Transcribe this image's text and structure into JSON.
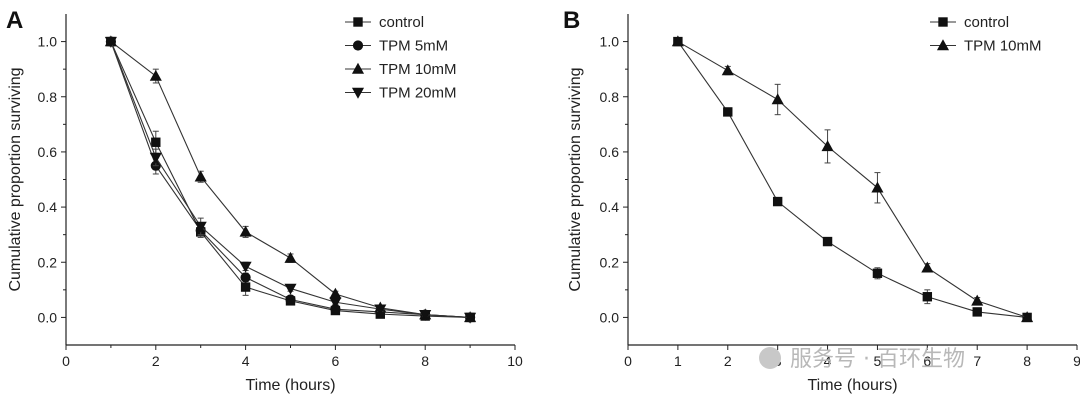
{
  "chart_data": [
    {
      "panel": "A",
      "type": "line",
      "xlabel": "Time (hours)",
      "ylabel": "Cumulative proportion surviving",
      "xlim": [
        0,
        10
      ],
      "ylim": [
        -0.1,
        1.1
      ],
      "xticks": [
        0,
        2,
        4,
        6,
        8,
        10
      ],
      "yticks": [
        0.0,
        0.2,
        0.4,
        0.6,
        0.8,
        1.0
      ],
      "legend_position": "top-right",
      "series": [
        {
          "name": "control",
          "marker": "square",
          "x": [
            1,
            2,
            3,
            4,
            5,
            6,
            7,
            8,
            9
          ],
          "y": [
            1.0,
            0.635,
            0.31,
            0.11,
            0.06,
            0.025,
            0.012,
            0.005,
            0.0
          ],
          "err": [
            0,
            0.04,
            0.02,
            0.03,
            0.01,
            0.008,
            0.008,
            0.005,
            0
          ]
        },
        {
          "name": "TPM 5mM",
          "marker": "circle",
          "x": [
            1,
            2,
            3,
            4,
            5,
            6,
            7,
            8,
            9
          ],
          "y": [
            1.0,
            0.55,
            0.315,
            0.145,
            0.065,
            0.03,
            0.02,
            0.01,
            0.0
          ],
          "err": [
            0,
            0.03,
            0.02,
            0.015,
            0.01,
            0.008,
            0.008,
            0.005,
            0
          ]
        },
        {
          "name": "TPM 10mM",
          "marker": "triangle-up",
          "x": [
            1,
            2,
            3,
            4,
            5,
            6,
            7,
            8,
            9
          ],
          "y": [
            1.0,
            0.875,
            0.51,
            0.31,
            0.215,
            0.085,
            0.035,
            0.01,
            0.0
          ],
          "err": [
            0,
            0.025,
            0.02,
            0.02,
            0.015,
            0.01,
            0.008,
            0.005,
            0
          ]
        },
        {
          "name": "TPM 20mM",
          "marker": "triangle-down",
          "x": [
            1,
            2,
            3,
            4,
            5,
            6,
            7,
            8,
            9
          ],
          "y": [
            1.0,
            0.58,
            0.33,
            0.185,
            0.105,
            0.055,
            0.03,
            0.01,
            0.0
          ],
          "err": [
            0,
            0.03,
            0.03,
            0.015,
            0.01,
            0.008,
            0.008,
            0.005,
            0
          ]
        }
      ]
    },
    {
      "panel": "B",
      "type": "line",
      "xlabel": "Time (hours)",
      "ylabel": "Cumulative proportion surviving",
      "xlim": [
        0,
        9
      ],
      "ylim": [
        -0.1,
        1.1
      ],
      "xticks": [
        0,
        1,
        2,
        3,
        4,
        5,
        6,
        7,
        8,
        9
      ],
      "yticks": [
        0.0,
        0.2,
        0.4,
        0.6,
        0.8,
        1.0
      ],
      "legend_position": "top-right",
      "series": [
        {
          "name": "control",
          "marker": "square",
          "x": [
            1,
            2,
            3,
            4,
            5,
            6,
            7,
            8
          ],
          "y": [
            1.0,
            0.745,
            0.42,
            0.275,
            0.16,
            0.075,
            0.02,
            0.0
          ],
          "err": [
            0,
            0.01,
            0.01,
            0.01,
            0.02,
            0.025,
            0.008,
            0
          ]
        },
        {
          "name": "TPM 10mM",
          "marker": "triangle-up",
          "x": [
            1,
            2,
            3,
            4,
            5,
            6,
            7,
            8
          ],
          "y": [
            1.0,
            0.895,
            0.79,
            0.62,
            0.47,
            0.18,
            0.06,
            0.0
          ],
          "err": [
            0,
            0.015,
            0.055,
            0.06,
            0.055,
            0.015,
            0.012,
            0
          ]
        }
      ]
    }
  ],
  "watermark": "服务号 · 百环生物"
}
